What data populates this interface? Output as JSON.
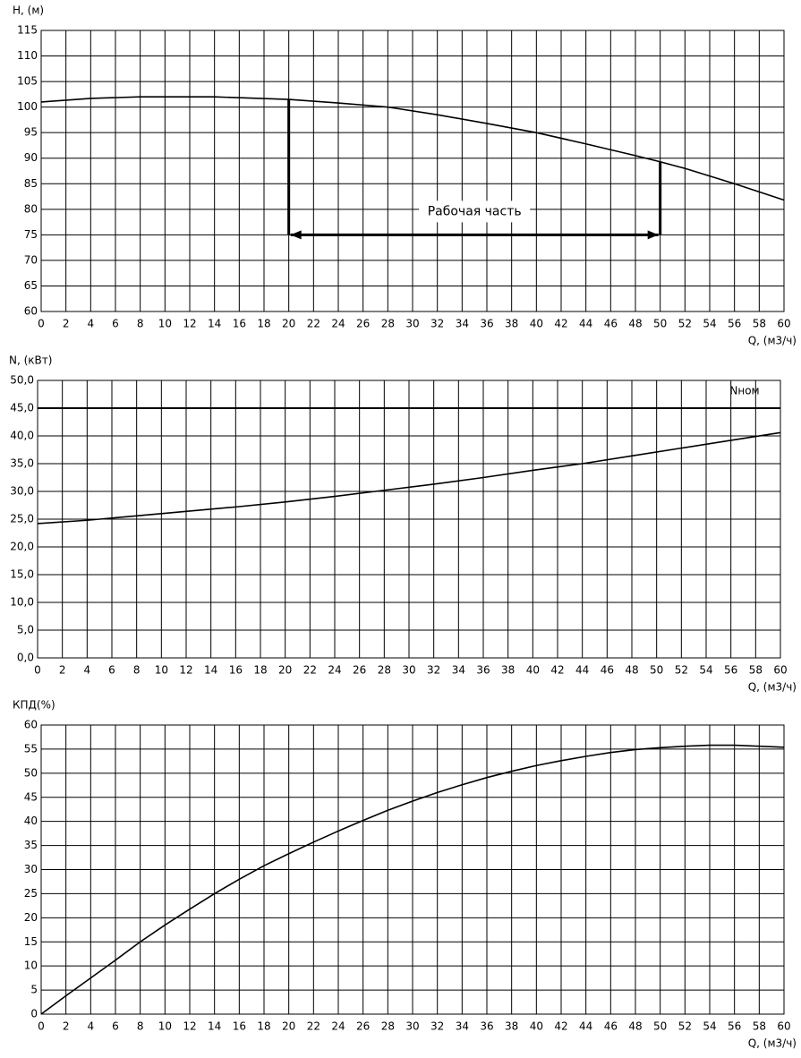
{
  "chart_data": [
    {
      "type": "line",
      "ylabel": "H, (м)",
      "xlabel": "Q, (м3/ч)",
      "xlim": [
        0,
        60
      ],
      "xticks": [
        0,
        2,
        4,
        6,
        8,
        10,
        12,
        14,
        16,
        18,
        20,
        22,
        24,
        26,
        28,
        30,
        32,
        34,
        36,
        38,
        40,
        42,
        44,
        46,
        48,
        50,
        52,
        54,
        56,
        58,
        60
      ],
      "ylim": [
        60,
        115
      ],
      "yticks": [
        60,
        65,
        70,
        75,
        80,
        85,
        90,
        95,
        100,
        105,
        110,
        115
      ],
      "grid": true,
      "series": [
        {
          "color": "#000000",
          "x": [
            0,
            4,
            8,
            12,
            14,
            20,
            24,
            28,
            32,
            36,
            40,
            44,
            48,
            50,
            52,
            56,
            60
          ],
          "values": [
            101,
            101.7,
            102,
            102,
            102,
            101.5,
            100.8,
            100,
            98.5,
            96.8,
            95,
            92.8,
            90.5,
            89.3,
            88,
            85,
            81.8
          ]
        }
      ],
      "annotation": {
        "text": "Рабочая часть",
        "x": [
          20,
          50
        ],
        "y": 75
      }
    },
    {
      "type": "line",
      "ylabel": "N, (кВт)",
      "xlabel": "Q, (м3/ч)",
      "xlim": [
        0,
        60
      ],
      "xticks": [
        0,
        2,
        4,
        6,
        8,
        10,
        12,
        14,
        16,
        18,
        20,
        22,
        24,
        26,
        28,
        30,
        32,
        34,
        36,
        38,
        40,
        42,
        44,
        46,
        48,
        50,
        52,
        54,
        56,
        58,
        60
      ],
      "ylim": [
        0,
        50
      ],
      "yticks": [
        {
          "value": 0,
          "label": "0,0"
        },
        {
          "value": 5,
          "label": "5,0"
        },
        {
          "value": 10,
          "label": "10,0"
        },
        {
          "value": 15,
          "label": "15,0"
        },
        {
          "value": 20,
          "label": "20,0"
        },
        {
          "value": 25,
          "label": "25,0"
        },
        {
          "value": 30,
          "label": "30,0"
        },
        {
          "value": 35,
          "label": "35,0"
        },
        {
          "value": 40,
          "label": "40,0"
        },
        {
          "value": 45,
          "label": "45,0"
        },
        {
          "value": 50,
          "label": "50,0"
        }
      ],
      "grid": true,
      "series": [
        {
          "color": "#000000",
          "x": [
            0,
            4,
            8,
            12,
            16,
            20,
            24,
            28,
            32,
            36,
            40,
            44,
            48,
            52,
            56,
            60
          ],
          "values": [
            24.2,
            24.8,
            25.6,
            26.4,
            27.2,
            28.1,
            29.1,
            30.2,
            31.3,
            32.5,
            33.8,
            35,
            36.4,
            37.8,
            39.2,
            40.6
          ]
        }
      ],
      "hline": {
        "value": 45,
        "label": "Nном"
      }
    },
    {
      "type": "line",
      "ylabel": "КПД(%)",
      "xlabel": "Q, (м3/ч)",
      "xlim": [
        0,
        60
      ],
      "xticks": [
        0,
        2,
        4,
        6,
        8,
        10,
        12,
        14,
        16,
        18,
        20,
        22,
        24,
        26,
        28,
        30,
        32,
        34,
        36,
        38,
        40,
        42,
        44,
        46,
        48,
        50,
        52,
        54,
        56,
        58,
        60
      ],
      "ylim": [
        0,
        60
      ],
      "yticks": [
        0,
        5,
        10,
        15,
        20,
        25,
        30,
        35,
        40,
        45,
        50,
        55,
        60
      ],
      "grid": true,
      "series": [
        {
          "color": "#000000",
          "x": [
            0,
            2,
            4,
            6,
            8,
            10,
            12,
            14,
            16,
            18,
            20,
            22,
            24,
            26,
            28,
            30,
            32,
            34,
            36,
            38,
            40,
            42,
            44,
            46,
            48,
            50,
            52,
            54,
            56,
            58,
            60
          ],
          "values": [
            0,
            3.8,
            7.5,
            11.2,
            15,
            18.5,
            21.8,
            25,
            28,
            30.8,
            33.3,
            35.7,
            38,
            40.2,
            42.3,
            44.2,
            46,
            47.6,
            49.1,
            50.4,
            51.6,
            52.6,
            53.5,
            54.3,
            54.9,
            55.3,
            55.6,
            55.8,
            55.8,
            55.6,
            55.4
          ]
        }
      ]
    }
  ]
}
